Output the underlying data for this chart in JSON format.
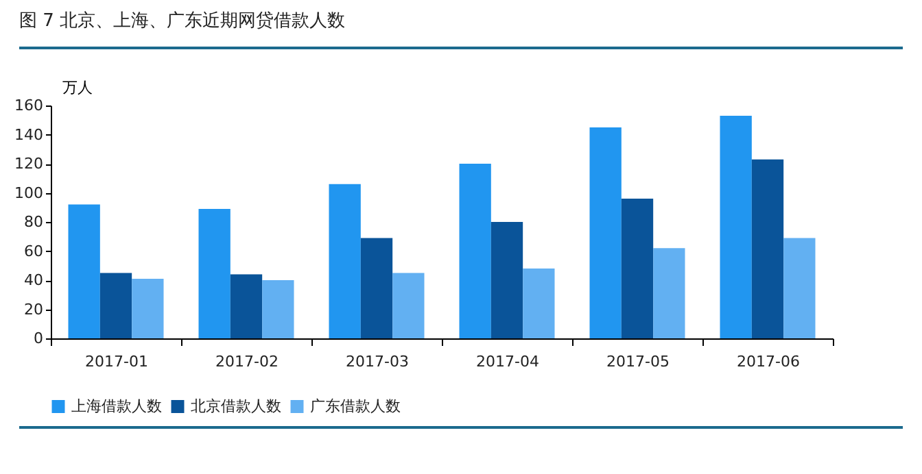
{
  "chart_data": {
    "type": "bar",
    "title": "图 7   北京、上海、广东近期网贷借款人数",
    "ylabel": "万人",
    "categories": [
      "2017-01",
      "2017-02",
      "2017-03",
      "2017-04",
      "2017-05",
      "2017-06"
    ],
    "series": [
      {
        "name": "上海借款人数",
        "color": "#2196f0",
        "values": [
          92,
          89,
          106,
          120,
          145,
          153
        ]
      },
      {
        "name": "北京借款人数",
        "color": "#0a5499",
        "values": [
          45,
          44,
          69,
          80,
          96,
          123
        ]
      },
      {
        "name": "广东借款人数",
        "color": "#62b0f2",
        "values": [
          41,
          40,
          45,
          48,
          62,
          69
        ]
      }
    ],
    "ylim": [
      0,
      160
    ],
    "yticks": [
      0,
      20,
      40,
      60,
      80,
      100,
      120,
      140,
      160
    ],
    "grid": false,
    "legend": "bottom"
  }
}
